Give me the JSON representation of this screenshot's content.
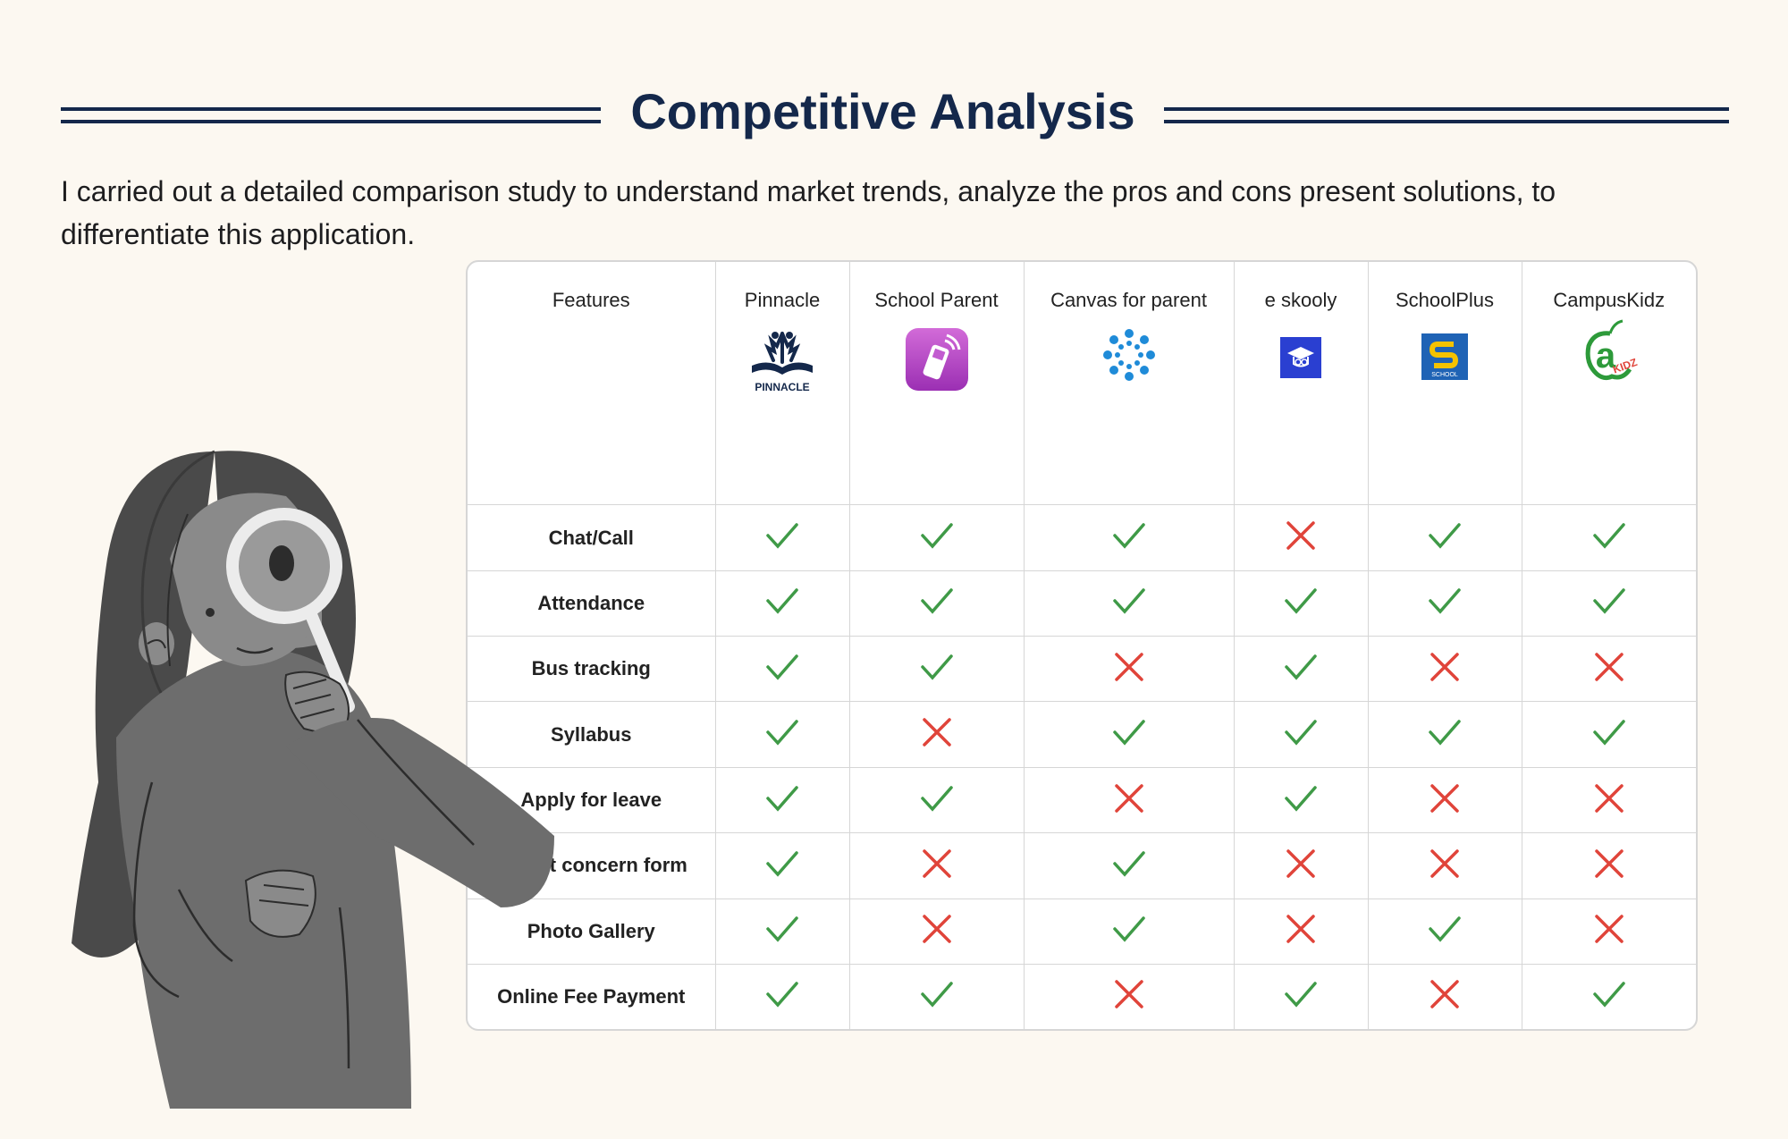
{
  "title": "Competitive Analysis",
  "intro": "I carried out a detailed comparison study to understand market trends, analyze the pros and cons present solutions, to differentiate this application.",
  "table": {
    "features_header": "Features",
    "competitors": [
      {
        "name": "Pinnacle",
        "logo": "pinnacle-logo",
        "logo_text": "PINNACLE"
      },
      {
        "name": "School Parent",
        "logo": "phone-app-logo"
      },
      {
        "name": "Canvas for parent",
        "logo": "canvas-dots-logo"
      },
      {
        "name": "e skooly",
        "logo": "graduation-cap-logo"
      },
      {
        "name": "SchoolPlus",
        "logo": "schoolplus-s-logo",
        "logo_text": "SCHOOL"
      },
      {
        "name": "CampusKidz",
        "logo": "campuskidz-apple-logo",
        "logo_text": "a KIDZ"
      }
    ],
    "rows": [
      {
        "feature": "Chat/Call",
        "marks": [
          true,
          true,
          true,
          false,
          true,
          true
        ]
      },
      {
        "feature": "Attendance",
        "marks": [
          true,
          true,
          true,
          true,
          true,
          true
        ]
      },
      {
        "feature": "Bus tracking",
        "marks": [
          true,
          true,
          false,
          true,
          false,
          false
        ]
      },
      {
        "feature": "Syllabus",
        "marks": [
          true,
          false,
          true,
          true,
          true,
          true
        ]
      },
      {
        "feature": "Apply for leave",
        "marks": [
          true,
          true,
          false,
          true,
          false,
          false
        ]
      },
      {
        "feature": "Parent concern form",
        "marks": [
          true,
          false,
          true,
          false,
          false,
          false
        ]
      },
      {
        "feature": "Photo Gallery",
        "marks": [
          true,
          false,
          true,
          false,
          true,
          false
        ]
      },
      {
        "feature": "Online Fee Payment",
        "marks": [
          true,
          true,
          false,
          true,
          false,
          true
        ]
      }
    ]
  },
  "colors": {
    "check": "#3f9a47",
    "cross": "#e0443a",
    "title": "#14284b",
    "background": "#fcf8f1"
  },
  "icons": {
    "yes": "check-icon",
    "no": "cross-icon"
  }
}
